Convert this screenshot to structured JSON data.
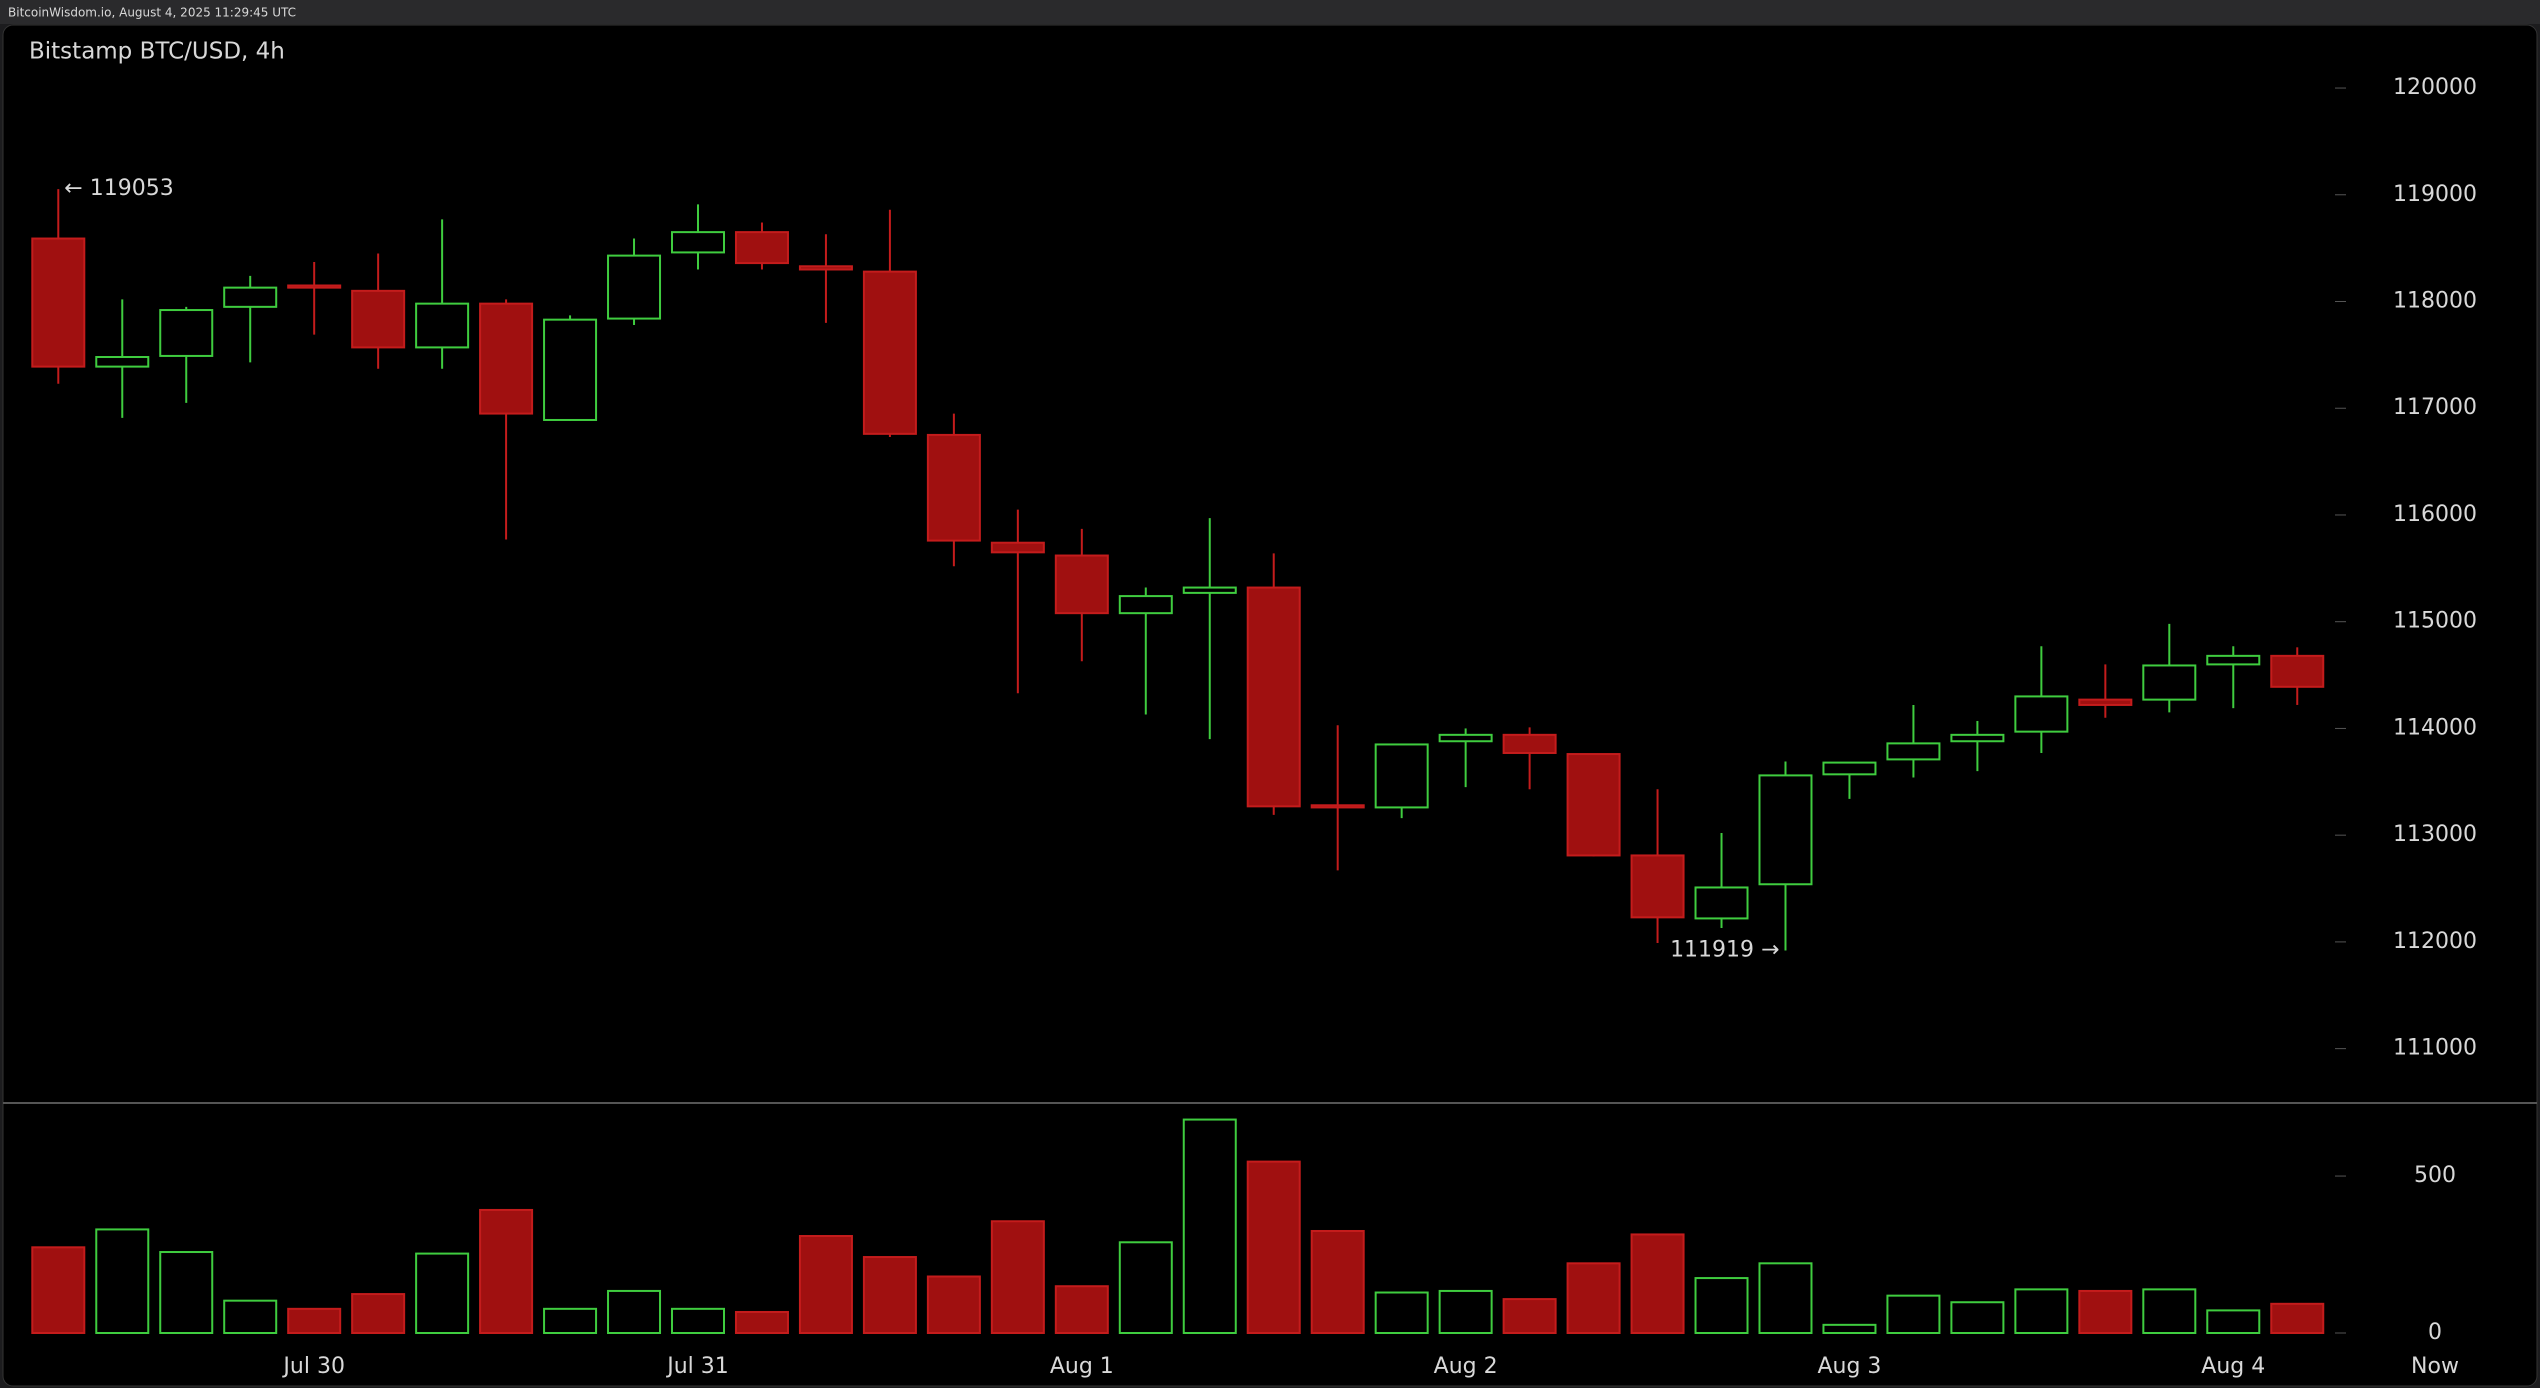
{
  "header": "BitcoinWisdom.io, August 4, 2025 11:29:45 UTC",
  "chart_data": {
    "type": "candlestick",
    "title": "Bitstamp BTC/USD, 4h",
    "categories": [
      null,
      null,
      null,
      null,
      "Jul 30",
      null,
      null,
      null,
      null,
      null,
      "Jul 31",
      null,
      null,
      null,
      null,
      null,
      "Aug 1",
      null,
      null,
      null,
      null,
      null,
      "Aug 2",
      null,
      null,
      null,
      null,
      null,
      "Aug 3",
      null,
      null,
      null,
      null,
      null,
      "Aug 4",
      null
    ],
    "end_label": "Now",
    "open": [
      118590,
      117390,
      117490,
      117950,
      118150,
      118100,
      117570,
      117980,
      116890,
      117840,
      118460,
      118650,
      118330,
      118280,
      116750,
      115740,
      115620,
      115080,
      115270,
      115320,
      113280,
      113260,
      113880,
      113940,
      113760,
      112810,
      112220,
      112540,
      113570,
      113710,
      113880,
      113970,
      114270,
      114270,
      114600,
      114680
    ],
    "high": [
      119053,
      118020,
      117950,
      118240,
      118370,
      118450,
      118770,
      118020,
      117870,
      118590,
      118910,
      118740,
      118630,
      118860,
      116950,
      116050,
      115870,
      115320,
      115970,
      115640,
      114030,
      113850,
      114000,
      114010,
      113760,
      113430,
      113020,
      113690,
      113680,
      114220,
      114070,
      114770,
      114600,
      114980,
      114770,
      114760
    ],
    "low": [
      117230,
      116910,
      117050,
      117430,
      117690,
      117370,
      117370,
      115770,
      116880,
      117780,
      118300,
      118300,
      117800,
      116730,
      115520,
      114330,
      114630,
      114130,
      113900,
      113190,
      112670,
      113160,
      113450,
      113430,
      112800,
      111990,
      112130,
      111919,
      113340,
      113540,
      113600,
      113770,
      114100,
      114150,
      114190,
      114220
    ],
    "close": [
      117390,
      117480,
      117920,
      118130,
      118130,
      117570,
      117980,
      116950,
      117830,
      118430,
      118650,
      118360,
      118300,
      116760,
      115760,
      115650,
      115080,
      115240,
      115320,
      113270,
      113260,
      113850,
      113940,
      113770,
      112810,
      112230,
      112510,
      113560,
      113680,
      113860,
      113940,
      114300,
      114220,
      114590,
      114680,
      114390
    ],
    "volume": [
      273,
      330,
      258,
      103,
      77,
      124,
      253,
      392,
      77,
      134,
      77,
      67,
      309,
      242,
      180,
      356,
      149,
      289,
      680,
      546,
      325,
      129,
      134,
      108,
      222,
      314,
      175,
      222,
      26,
      119,
      98,
      139,
      134,
      139,
      72,
      93
    ],
    "ylim": [
      110500,
      120600
    ],
    "yticks": [
      111000,
      112000,
      113000,
      114000,
      115000,
      116000,
      117000,
      118000,
      119000,
      120000
    ],
    "volume_ylim": [
      0,
      720
    ],
    "volume_yticks": [
      0,
      500
    ],
    "annotations": [
      {
        "value": 119053,
        "label": "← 119053"
      },
      {
        "value": 111919,
        "label": "111919 →"
      }
    ],
    "up_color": "#3fcc3f",
    "down_color": "#a01010"
  }
}
